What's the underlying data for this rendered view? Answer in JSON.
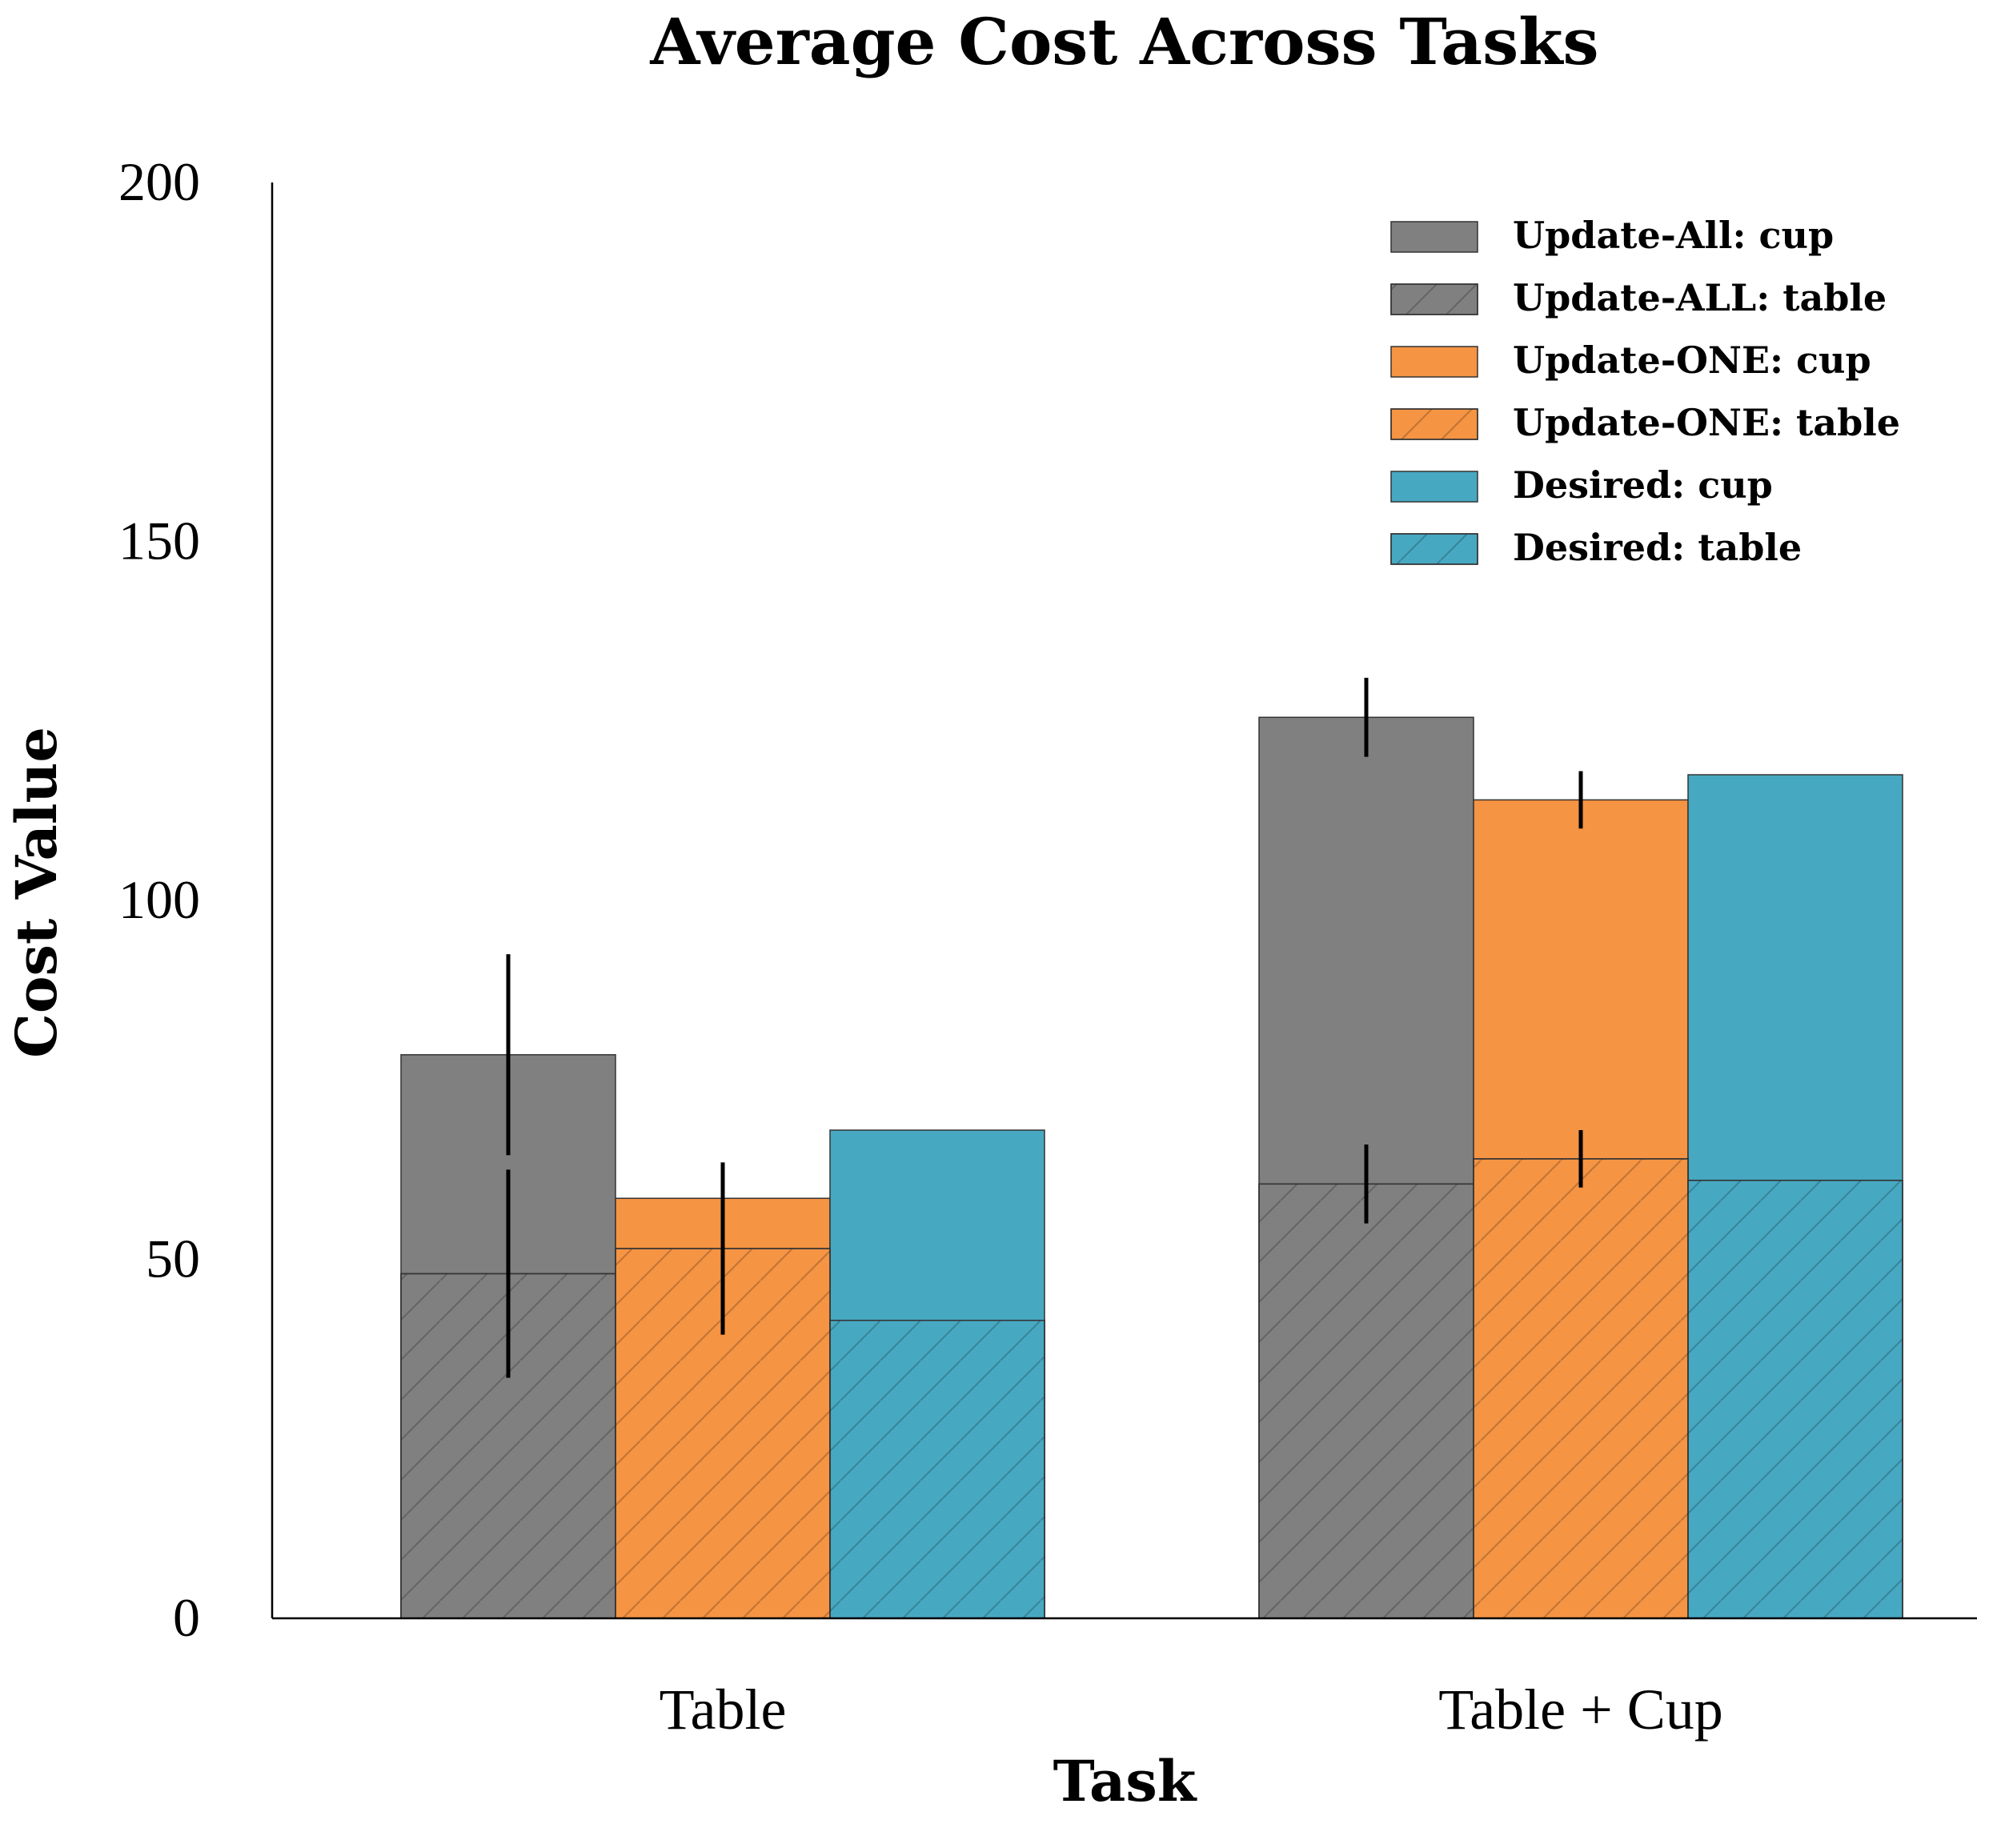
{
  "chart_data": {
    "type": "bar",
    "title": "Average Cost Across Tasks",
    "xlabel": "Task",
    "ylabel": "Cost Value",
    "ylim": [
      0,
      200
    ],
    "yticks": [
      0,
      50,
      100,
      150,
      200
    ],
    "categories": [
      "Table",
      "Table + Cup"
    ],
    "grid": false,
    "legend_position": "top-right",
    "groups": [
      {
        "name": "Update-All",
        "color": "#808080"
      },
      {
        "name": "Update-ONE",
        "color": "#f59443"
      },
      {
        "name": "Desired",
        "color": "#47a8c2"
      }
    ],
    "series": [
      {
        "name": "Update-All: cup",
        "group": 0,
        "hatch": false,
        "values": [
          78.5,
          125.5
        ],
        "errors": [
          14,
          5.5
        ]
      },
      {
        "name": "Update-ALL: table",
        "group": 0,
        "hatch": true,
        "values": [
          48,
          60.5
        ],
        "errors": [
          14.5,
          5.5
        ]
      },
      {
        "name": "Update-ONE: cup",
        "group": 1,
        "hatch": false,
        "values": [
          58.5,
          114
        ],
        "errors": [
          0,
          4
        ]
      },
      {
        "name": "Update-ONE: table",
        "group": 1,
        "hatch": true,
        "values": [
          51.5,
          64
        ],
        "errors": [
          12,
          4
        ]
      },
      {
        "name": "Desired: cup",
        "group": 2,
        "hatch": false,
        "values": [
          68,
          117.5
        ],
        "errors": [
          0,
          0
        ]
      },
      {
        "name": "Desired: table",
        "group": 2,
        "hatch": true,
        "values": [
          41.5,
          61
        ],
        "errors": [
          0,
          0
        ]
      }
    ]
  }
}
